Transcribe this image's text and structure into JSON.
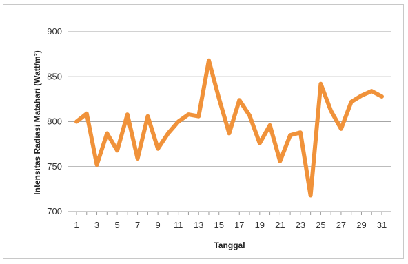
{
  "chart_data": {
    "type": "line",
    "title": "",
    "xlabel": "Tanggal",
    "ylabel": "Intensitas Radiasi Matahari (Watt/m²)",
    "ylim": [
      700,
      900
    ],
    "yticks": [
      700,
      750,
      800,
      850,
      900
    ],
    "xlim": [
      1,
      31
    ],
    "xticks": [
      1,
      3,
      5,
      7,
      9,
      11,
      13,
      15,
      17,
      19,
      21,
      23,
      25,
      27,
      29,
      31
    ],
    "grid": "horizontal",
    "legend": "none",
    "series": [
      {
        "color": "#f0923a",
        "x": [
          1,
          2,
          3,
          4,
          5,
          6,
          7,
          8,
          9,
          10,
          11,
          12,
          13,
          14,
          15,
          16,
          17,
          18,
          19,
          20,
          21,
          22,
          23,
          24,
          25,
          26,
          27,
          28,
          29,
          30,
          31
        ],
        "values": [
          800,
          809,
          752,
          787,
          768,
          808,
          759,
          806,
          770,
          787,
          800,
          808,
          806,
          868,
          826,
          787,
          824,
          807,
          776,
          796,
          756,
          785,
          788,
          718,
          842,
          812,
          792,
          822,
          829,
          834,
          828
        ]
      }
    ]
  }
}
